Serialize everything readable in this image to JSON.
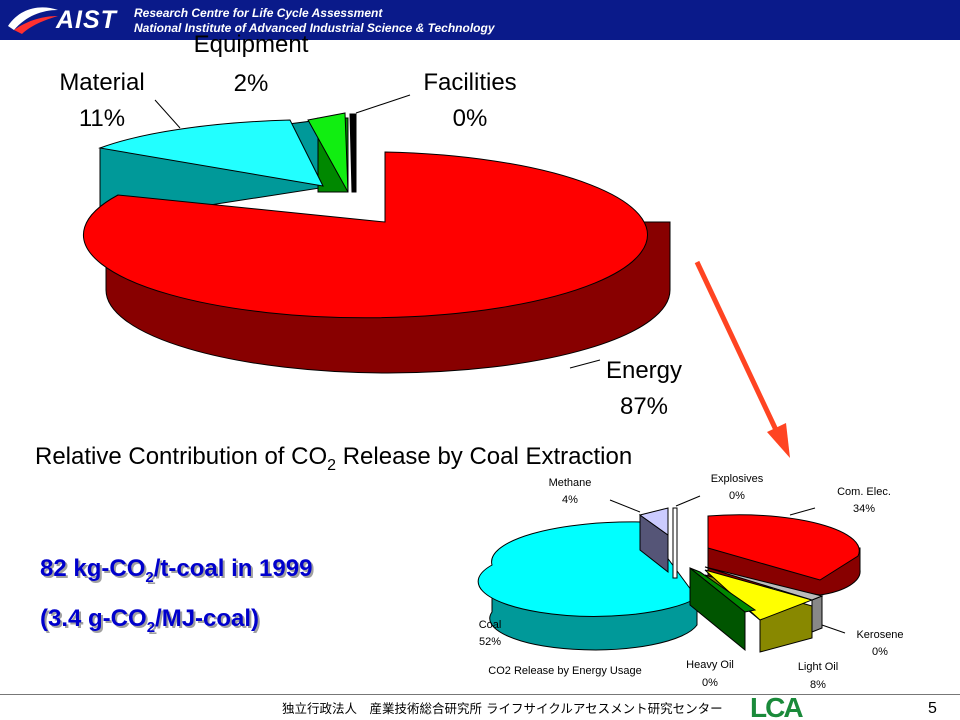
{
  "header": {
    "logo": "AIST",
    "line1": "Research Centre for Life Cycle Assessment",
    "line2": "National Institute of Advanced Industrial Science & Technology"
  },
  "footer": {
    "jp_text": "独立行政法人　産業技術総合研究所 ライフサイクルアセスメント研究センター",
    "lca_logo": "LCA",
    "page_number": "5"
  },
  "result": {
    "line1_prefix": "82 kg-CO",
    "line1_sub": "2",
    "line1_suffix": "/t-coal  in 1999",
    "line2_prefix": "(3.4 g-CO",
    "line2_sub": "2",
    "line2_suffix": "/MJ-coal)"
  },
  "chart_data": [
    {
      "type": "pie",
      "style": "3d-exploded",
      "title_parts": {
        "prefix": "Relative Contribution of CO",
        "sub": "2",
        "suffix": " Release by Coal Extraction"
      },
      "slices": [
        {
          "label": "Energy",
          "value_label": "87%",
          "value": 87,
          "color": "#ff0000"
        },
        {
          "label": "Material",
          "value_label": "11%",
          "value": 11,
          "color": "#00ffff"
        },
        {
          "label": "Equipment",
          "value_label": "2%",
          "value": 2,
          "color": "#00ee00"
        },
        {
          "label": "Facilities",
          "value_label": "0%",
          "value": 0,
          "color": "#000000"
        }
      ]
    },
    {
      "type": "pie",
      "style": "3d-exploded",
      "title": "CO2 Release by Energy Usage",
      "slices": [
        {
          "label": "Com. Elec.",
          "value_label": "34%",
          "value": 34,
          "color": "#ff0000"
        },
        {
          "label": "Kerosene",
          "value_label": "0%",
          "value": 0,
          "color": "#bbbbbb"
        },
        {
          "label": "Light Oil",
          "value_label": "8%",
          "value": 8,
          "color": "#ffff00"
        },
        {
          "label": "Heavy Oil",
          "value_label": "0%",
          "value": 0,
          "color": "#008800"
        },
        {
          "label": "Coal",
          "value_label": "52%",
          "value": 52,
          "color": "#00ffff"
        },
        {
          "label": "Methane",
          "value_label": "4%",
          "value": 4,
          "color": "#ccccff"
        },
        {
          "label": "Explosives",
          "value_label": "0%",
          "value": 0,
          "color": "#ffffff"
        }
      ]
    }
  ],
  "colors": {
    "header_bg": "#0a1a8a",
    "arrow": "#ff4422",
    "result_text": "#0000cc"
  }
}
